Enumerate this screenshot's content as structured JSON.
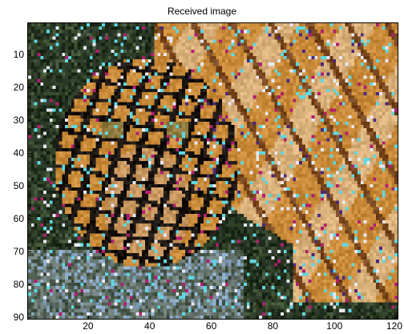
{
  "figure": {
    "title": "Received image"
  },
  "axes": {
    "y_ticks": [
      "10",
      "20",
      "30",
      "40",
      "50",
      "60",
      "70",
      "80",
      "90"
    ],
    "x_ticks": [
      "20",
      "40",
      "60",
      "80",
      "100",
      "120"
    ],
    "x_range": [
      0.5,
      120.5
    ],
    "y_range": [
      0.5,
      90.5
    ],
    "y_direction": "reverse"
  },
  "image": {
    "subject": "tiger",
    "colors": {
      "background_dark": "#24301f",
      "tiger_orange": "#c98b3a",
      "tiger_light": "#d9b07a",
      "stripe_dark": "#1a1410",
      "noise_cyan": "#5fd7e0",
      "noise_magenta": "#b0206e",
      "noise_white": "#e8e8f0",
      "noise_purple": "#4a2a7a",
      "water_blue": "#8aa8c8"
    }
  }
}
